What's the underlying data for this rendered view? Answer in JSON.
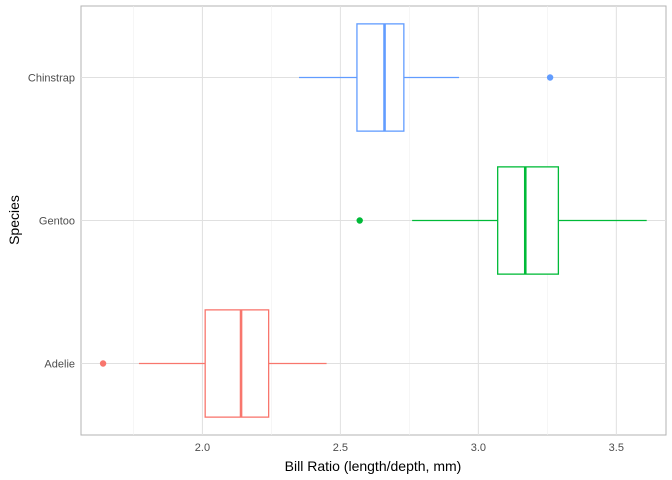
{
  "chart_data": {
    "type": "boxplot",
    "orientation": "horizontal",
    "title": "",
    "xlabel": "Bill Ratio (length/depth, mm)",
    "ylabel": "Species",
    "xlim": [
      1.56,
      3.68
    ],
    "x_ticks": [
      2.0,
      2.5,
      3.0,
      3.5
    ],
    "x_tick_labels": [
      "2.0",
      "2.5",
      "3.0",
      "3.5"
    ],
    "grid": true,
    "legend": "none",
    "categories": [
      "Adelie",
      "Gentoo",
      "Chinstrap"
    ],
    "series": [
      {
        "category": "Adelie",
        "color": "#F8766D",
        "whisker_low": 1.77,
        "q1": 2.01,
        "median": 2.14,
        "q3": 2.24,
        "whisker_high": 2.45,
        "outliers": [
          1.64
        ]
      },
      {
        "category": "Gentoo",
        "color": "#00BA38",
        "whisker_low": 2.76,
        "q1": 3.07,
        "median": 3.17,
        "q3": 3.29,
        "whisker_high": 3.61,
        "outliers": [
          2.57
        ]
      },
      {
        "category": "Chinstrap",
        "color": "#619CFF",
        "whisker_low": 2.35,
        "q1": 2.56,
        "median": 2.66,
        "q3": 2.73,
        "whisker_high": 2.93,
        "outliers": [
          3.26
        ]
      }
    ]
  }
}
